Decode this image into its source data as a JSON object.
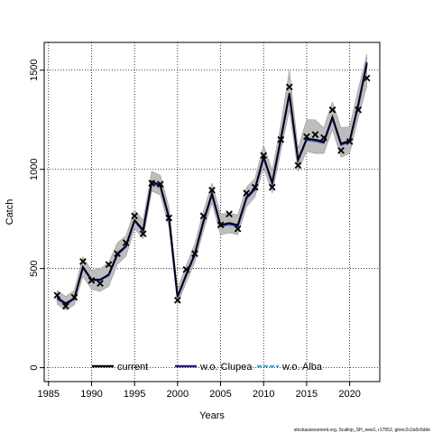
{
  "chart_data": {
    "type": "line",
    "xlabel": "Years",
    "ylabel": "Catch",
    "xlim": [
      1984.5,
      2023.5
    ],
    "ylim": [
      -70,
      1640
    ],
    "x_ticks": [
      1985,
      1990,
      1995,
      2000,
      2005,
      2010,
      2015,
      2020
    ],
    "y_ticks": [
      0,
      500,
      1000,
      1500
    ],
    "grid": true,
    "legend_position": "bottom",
    "legend": [
      {
        "label": "current",
        "color": "#000000"
      },
      {
        "label": "w.o. Clupea",
        "color": "#2b1a8c"
      },
      {
        "label": "w.o. Alba",
        "color": "#4aa6e0"
      }
    ],
    "x": [
      1986,
      1987,
      1988,
      1989,
      1990,
      1991,
      1992,
      1993,
      1994,
      1995,
      1996,
      1997,
      1998,
      1999,
      2000,
      2001,
      2002,
      2003,
      2004,
      2005,
      2006,
      2007,
      2008,
      2009,
      2010,
      2011,
      2012,
      2013,
      2014,
      2015,
      2016,
      2017,
      2018,
      2019,
      2020,
      2021,
      2022
    ],
    "observed": [
      365,
      310,
      355,
      535,
      440,
      425,
      520,
      575,
      630,
      765,
      675,
      930,
      925,
      755,
      340,
      495,
      575,
      765,
      895,
      720,
      775,
      700,
      880,
      910,
      1070,
      910,
      1150,
      1415,
      1020,
      1165,
      1175,
      1160,
      1300,
      1095,
      1140,
      1300,
      1460
    ],
    "series": [
      {
        "name": "current",
        "color": "#000000",
        "values": [
          355,
          325,
          350,
          510,
          445,
          445,
          470,
          575,
          615,
          745,
          695,
          940,
          920,
          760,
          360,
          470,
          575,
          740,
          880,
          720,
          730,
          720,
          860,
          905,
          1065,
          935,
          1155,
          1385,
          1050,
          1155,
          1150,
          1140,
          1265,
          1130,
          1145,
          1330,
          1530
        ],
        "lower": [
          320,
          290,
          315,
          460,
          395,
          385,
          410,
          520,
          560,
          700,
          650,
          890,
          870,
          710,
          320,
          430,
          530,
          690,
          830,
          670,
          680,
          670,
          810,
          860,
          1010,
          880,
          1090,
          1300,
          990,
          1090,
          1080,
          1080,
          1200,
          1060,
          1080,
          1260,
          1420
        ],
        "upper": [
          390,
          360,
          390,
          560,
          490,
          500,
          530,
          630,
          665,
          795,
          745,
          990,
          970,
          810,
          400,
          515,
          625,
          790,
          930,
          775,
          780,
          770,
          910,
          955,
          1120,
          995,
          1225,
          1500,
          1105,
          1250,
          1250,
          1210,
          1340,
          1210,
          1215,
          1405,
          1580
        ]
      },
      {
        "name": "w.o. Clupea",
        "color": "#2b1a8c",
        "values": [
          350,
          320,
          348,
          505,
          442,
          442,
          468,
          570,
          612,
          742,
          690,
          935,
          915,
          755,
          355,
          468,
          570,
          735,
          875,
          715,
          725,
          715,
          855,
          900,
          1060,
          930,
          1150,
          1380,
          1045,
          1150,
          1145,
          1135,
          1260,
          1125,
          1140,
          1325,
          1540
        ]
      },
      {
        "name": "w.o. Alba",
        "color": "#4aa6e0",
        "values": [
          345,
          315,
          345,
          500,
          438,
          438,
          462,
          565,
          608,
          738,
          686,
          930,
          910,
          750,
          352,
          462,
          565,
          728,
          868,
          710,
          720,
          710,
          850,
          895,
          1055,
          925,
          1145,
          1370,
          1040,
          1145,
          1140,
          1130,
          1255,
          1120,
          1135,
          1318,
          1520
        ]
      }
    ]
  },
  "footer": {
    "credit": "stockassessment.org, Scallop_SH_new1, r17552, gitrec2c2a0c6dde"
  }
}
